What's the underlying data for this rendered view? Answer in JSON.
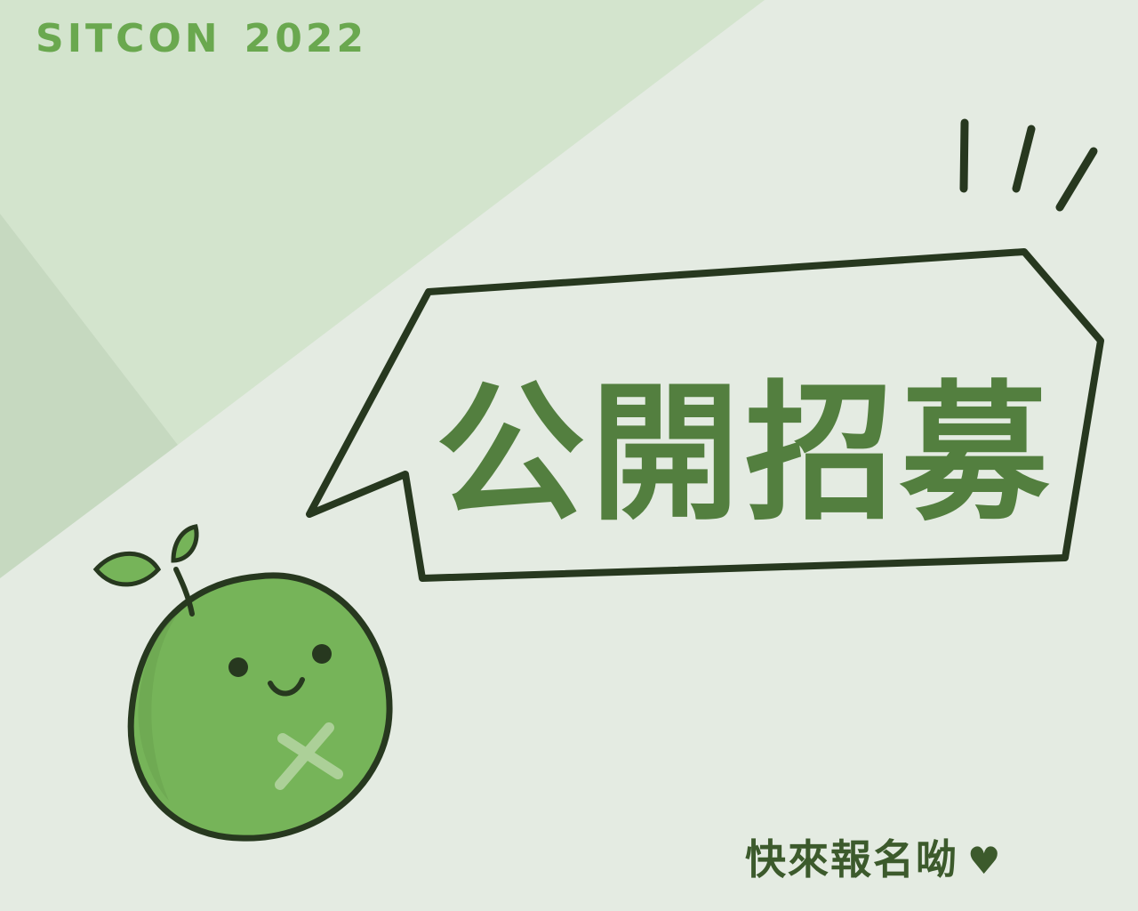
{
  "header": {
    "brand": "SITCON",
    "year": "2022"
  },
  "banner": {
    "headline": "公開招募",
    "call_to_action": "快來報名呦",
    "heart_glyph": "♥"
  },
  "colors": {
    "background": "#e4ebe2",
    "light_green": "#d3e4cd",
    "mid_green": "#c6d9c0",
    "brand_green": "#6aa84f",
    "headline_green": "#537f3f",
    "outline": "#27381f",
    "mascot_fill": "#76b459"
  },
  "icons": {
    "mascot": "green-apple-mascot-icon",
    "emphasis": "emphasis-lines-icon",
    "heart": "heart-icon"
  }
}
